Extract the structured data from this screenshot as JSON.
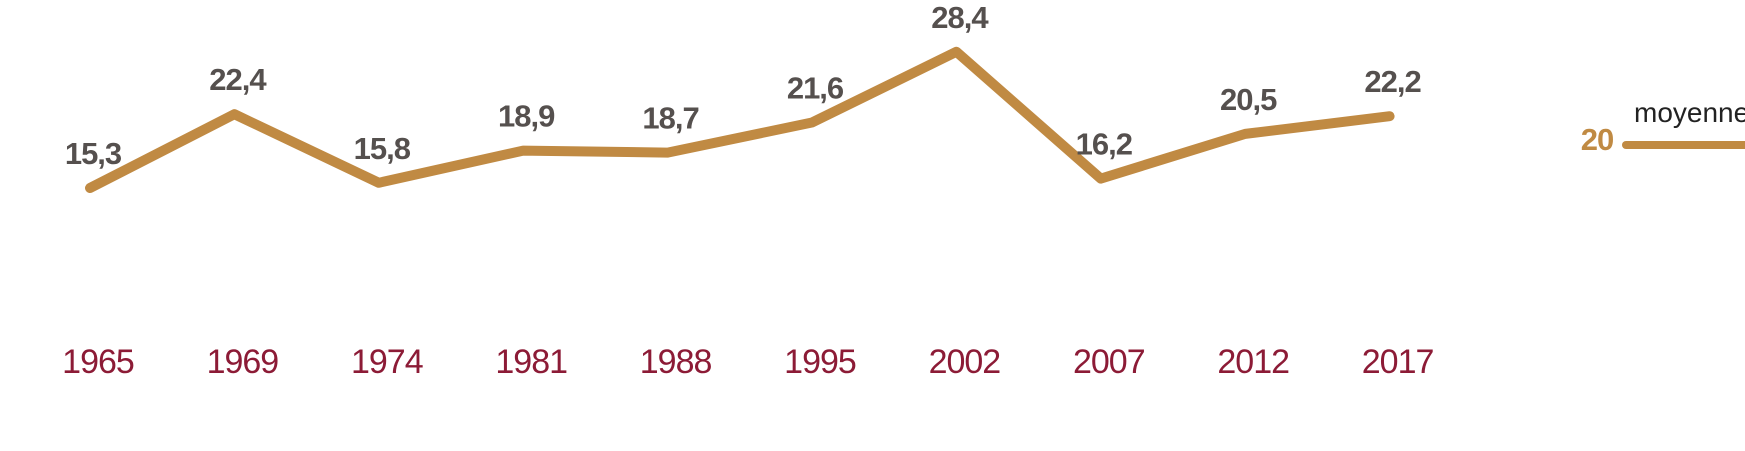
{
  "chart_data": {
    "type": "line",
    "categories": [
      "1965",
      "1969",
      "1974",
      "1981",
      "1988",
      "1995",
      "2002",
      "2007",
      "2012",
      "2017"
    ],
    "values": [
      15.3,
      22.4,
      15.8,
      18.9,
      18.7,
      21.6,
      28.4,
      16.2,
      20.5,
      22.2
    ],
    "value_labels": [
      "15,3",
      "22,4",
      "15,8",
      "18,9",
      "18,7",
      "21,6",
      "28,4",
      "16,2",
      "20,5",
      "22,2"
    ],
    "average": {
      "label": "moyenne",
      "value": 20,
      "value_label": "20"
    },
    "colors": {
      "line": "#c08a43",
      "x_labels": "#8c1b36",
      "value_labels": "#55504e",
      "average_value": "#c08a43"
    },
    "grid": false,
    "title": "",
    "xlabel": "",
    "ylabel": ""
  }
}
